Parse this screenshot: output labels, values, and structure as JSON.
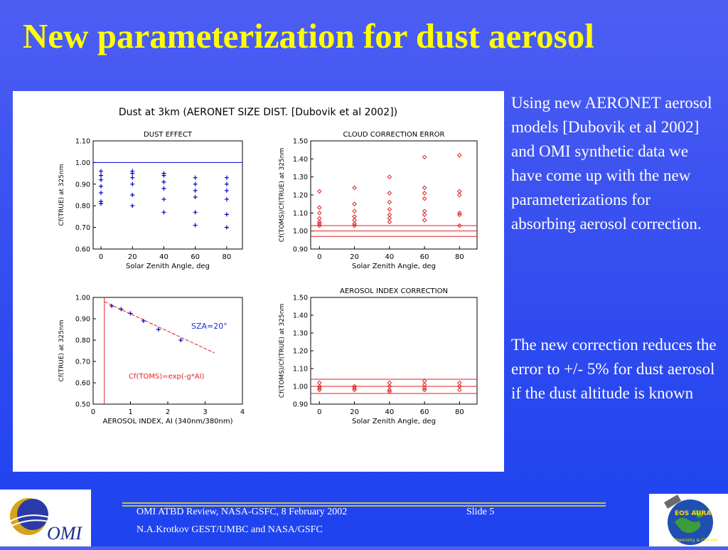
{
  "slide": {
    "title": "New parameterization for dust aerosol",
    "paragraph1": "Using new AERONET aerosol models [Dubovik et al 2002] and OMI synthetic data we have come up with the new parameterizations for absorbing aerosol correction.",
    "paragraph2": "The new correction reduces the error to +/- 5%  for dust aerosol if the dust altitude is known",
    "footer_line1": "OMI ATBD Review, NASA-GSFC, 8 February 2002",
    "footer_slide": "Slide 5",
    "footer_line2": "N.A.Krotkov GEST/UMBC and NASA/GSFC",
    "logo_omi_text": "OMI",
    "logo_aura_text": "EOS AURA",
    "logo_aura_sub": "Chemistry & Climate"
  },
  "figure_title": "Dust at 3km (AERONET SIZE DIST. [Dubovik et al 2002])",
  "chart_data": [
    {
      "type": "scatter",
      "title": "DUST EFFECT",
      "xlabel": "Solar Zenith Angle, deg",
      "ylabel": "Cf(TRUE) at 325nm",
      "xlim": [
        -5,
        90
      ],
      "ylim": [
        0.6,
        1.1
      ],
      "xticks": [
        0,
        20,
        40,
        60,
        80
      ],
      "yticks": [
        "0.60",
        "0.70",
        "0.80",
        "0.90",
        "1.00",
        "1.10"
      ],
      "marker": "plus",
      "color": "#0000cc",
      "hlines": [
        1.0
      ],
      "points": [
        [
          0,
          0.96
        ],
        [
          0,
          0.94
        ],
        [
          0,
          0.92
        ],
        [
          0,
          0.89
        ],
        [
          0,
          0.86
        ],
        [
          0,
          0.82
        ],
        [
          0,
          0.81
        ],
        [
          20,
          0.96
        ],
        [
          20,
          0.95
        ],
        [
          20,
          0.93
        ],
        [
          20,
          0.9
        ],
        [
          20,
          0.85
        ],
        [
          20,
          0.8
        ],
        [
          40,
          0.95
        ],
        [
          40,
          0.94
        ],
        [
          40,
          0.91
        ],
        [
          40,
          0.88
        ],
        [
          40,
          0.83
        ],
        [
          40,
          0.77
        ],
        [
          60,
          0.93
        ],
        [
          60,
          0.9
        ],
        [
          60,
          0.87
        ],
        [
          60,
          0.84
        ],
        [
          60,
          0.77
        ],
        [
          60,
          0.71
        ],
        [
          80,
          0.93
        ],
        [
          80,
          0.9
        ],
        [
          80,
          0.87
        ],
        [
          80,
          0.83
        ],
        [
          80,
          0.76
        ],
        [
          80,
          0.7
        ]
      ]
    },
    {
      "type": "scatter",
      "title": "CLOUD CORRECTION ERROR",
      "xlabel": "Solar Zenith Angle, deg",
      "ylabel": "Cf(TOMS)/Cf(TRUE) at 325nm",
      "xlim": [
        -5,
        90
      ],
      "ylim": [
        0.9,
        1.5
      ],
      "xticks": [
        0,
        20,
        40,
        60,
        80
      ],
      "yticks": [
        "0.90",
        "1.00",
        "1.10",
        "1.20",
        "1.30",
        "1.40",
        "1.50"
      ],
      "marker": "diamond",
      "color": "#e02020",
      "hlines": [
        0.97,
        1.0,
        1.03
      ],
      "points": [
        [
          0,
          1.22
        ],
        [
          0,
          1.13
        ],
        [
          0,
          1.1
        ],
        [
          0,
          1.07
        ],
        [
          0,
          1.05
        ],
        [
          0,
          1.04
        ],
        [
          0,
          1.03
        ],
        [
          20,
          1.24
        ],
        [
          20,
          1.15
        ],
        [
          20,
          1.11
        ],
        [
          20,
          1.08
        ],
        [
          20,
          1.06
        ],
        [
          20,
          1.04
        ],
        [
          20,
          1.03
        ],
        [
          40,
          1.3
        ],
        [
          40,
          1.21
        ],
        [
          40,
          1.16
        ],
        [
          40,
          1.12
        ],
        [
          40,
          1.09
        ],
        [
          40,
          1.07
        ],
        [
          40,
          1.05
        ],
        [
          60,
          1.41
        ],
        [
          60,
          1.24
        ],
        [
          60,
          1.21
        ],
        [
          60,
          1.18
        ],
        [
          60,
          1.11
        ],
        [
          60,
          1.09
        ],
        [
          60,
          1.06
        ],
        [
          80,
          1.42
        ],
        [
          80,
          1.22
        ],
        [
          80,
          1.2
        ],
        [
          80,
          1.1
        ],
        [
          80,
          1.09
        ],
        [
          80,
          1.03
        ]
      ]
    },
    {
      "type": "scatter",
      "title": "",
      "xlabel": "AEROSOL INDEX, AI (340nm/380nm)",
      "ylabel": "Cf(TRUE) at 325nm",
      "xlim": [
        0,
        4
      ],
      "ylim": [
        0.5,
        1.0
      ],
      "xticks": [
        0,
        1,
        2,
        3,
        4
      ],
      "yticks": [
        "0.50",
        "0.60",
        "0.70",
        "0.80",
        "0.90",
        "1.00"
      ],
      "marker": "plus",
      "color": "#0000cc",
      "vlines": [
        0.3
      ],
      "fit_line": [
        [
          0.3,
          0.98
        ],
        [
          3.25,
          0.74
        ]
      ],
      "annotations": [
        "SZA=20°",
        "Cf(TOMS)=exp(-g*AI)"
      ],
      "points": [
        [
          0.5,
          0.96
        ],
        [
          0.75,
          0.945
        ],
        [
          1.0,
          0.925
        ],
        [
          1.35,
          0.89
        ],
        [
          1.75,
          0.85
        ],
        [
          2.35,
          0.8
        ]
      ]
    },
    {
      "type": "scatter",
      "title": "AEROSOL INDEX CORRECTION",
      "xlabel": "Solar Zenith Angle, deg",
      "ylabel": "Cf(TOMS)/Cf(TRUE) at 325nm",
      "xlim": [
        -5,
        90
      ],
      "ylim": [
        0.9,
        1.5
      ],
      "xticks": [
        0,
        20,
        40,
        60,
        80
      ],
      "yticks": [
        "0.90",
        "1.00",
        "1.10",
        "1.20",
        "1.30",
        "1.40",
        "1.50"
      ],
      "marker": "diamond",
      "color": "#e02020",
      "hlines": [
        0.96,
        1.0,
        1.04
      ],
      "points": [
        [
          0,
          1.02
        ],
        [
          0,
          1.0
        ],
        [
          0,
          0.99
        ],
        [
          0,
          0.98
        ],
        [
          20,
          1.0
        ],
        [
          20,
          0.99
        ],
        [
          20,
          0.98
        ],
        [
          40,
          1.02
        ],
        [
          40,
          1.0
        ],
        [
          40,
          0.98
        ],
        [
          40,
          0.97
        ],
        [
          60,
          1.03
        ],
        [
          60,
          1.01
        ],
        [
          60,
          0.99
        ],
        [
          60,
          0.98
        ],
        [
          80,
          1.02
        ],
        [
          80,
          1.0
        ],
        [
          80,
          0.98
        ]
      ]
    }
  ]
}
